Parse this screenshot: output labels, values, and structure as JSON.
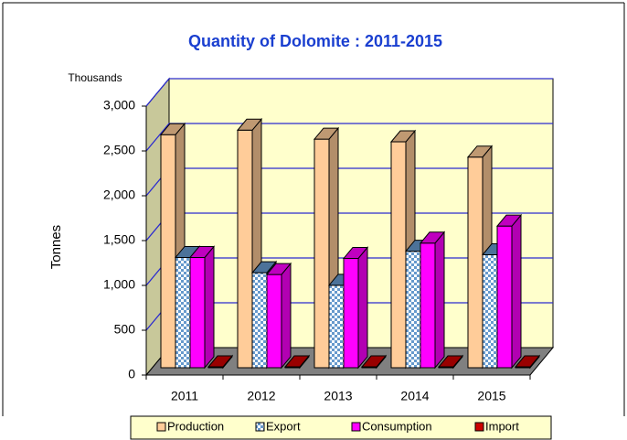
{
  "chart_data": {
    "type": "bar3d",
    "title": "Quantity of Dolomite : 2011-2015",
    "y_label": "Tonnes",
    "y_unit_label": "Thousands",
    "categories": [
      "2011",
      "2012",
      "2013",
      "2014",
      "2015"
    ],
    "series": [
      {
        "name": "Production",
        "color": "#ffcc99",
        "values": [
          2600,
          2650,
          2550,
          2520,
          2350
        ]
      },
      {
        "name": "Export",
        "color": "#6699cc",
        "pattern": "checker",
        "values": [
          1230,
          1060,
          920,
          1300,
          1260
        ]
      },
      {
        "name": "Consumption",
        "color": "#ff00ff",
        "values": [
          1230,
          1040,
          1220,
          1390,
          1580
        ]
      },
      {
        "name": "Import",
        "color": "#cc0000",
        "values": [
          10,
          10,
          10,
          10,
          10
        ]
      }
    ],
    "ylim": [
      0,
      3000
    ],
    "yticks": [
      0,
      500,
      {
        "value": 1000,
        "label": "1,000"
      },
      {
        "value": 1500,
        "label": "1,500"
      },
      {
        "value": 2000,
        "label": "2,000"
      },
      {
        "value": 2500,
        "label": "2,500"
      },
      {
        "value": 3000,
        "label": "3,000"
      }
    ],
    "grid": true,
    "legend": "bottom"
  }
}
